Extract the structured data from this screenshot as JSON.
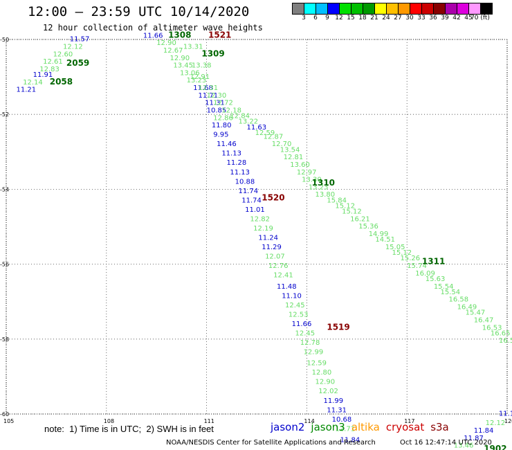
{
  "header": {
    "title": "12:00 – 23:59 UTC 10/14/2020",
    "subtitle": "12 hour collection of altimeter wave heights"
  },
  "legend": {
    "colors": [
      "#7f7f7f",
      "#00ffff",
      "#00bfff",
      "#0000ff",
      "#00e000",
      "#00c000",
      "#009900",
      "#ffff00",
      "#ffc000",
      "#ff9900",
      "#ff0000",
      "#cc0000",
      "#880000",
      "#aa00aa",
      "#dd00dd",
      "#ff99ff",
      "#000000"
    ],
    "labels": [
      "3",
      "6",
      "9",
      "12",
      "15",
      "18",
      "21",
      "24",
      "27",
      "30",
      "33",
      "36",
      "39",
      "42",
      "45",
      "70 (ft)"
    ]
  },
  "axes": {
    "x_ticks": [
      "105",
      "108",
      "111",
      "114",
      "117",
      "120"
    ],
    "y_ticks": [
      "-50",
      "-52",
      "-54",
      "-56",
      "-58",
      "-60"
    ]
  },
  "satellites": [
    {
      "name": "jason2",
      "color": "#0000cc"
    },
    {
      "name": "jason3",
      "color": "#008800"
    },
    {
      "name": "altika",
      "color": "#ff9900"
    },
    {
      "name": "cryosat",
      "color": "#cc0000"
    },
    {
      "name": "s3a",
      "color": "#880000"
    }
  ],
  "footer": {
    "note": "note:  1) Time is in UTC;  2) SWH is in feet",
    "credit": "NOAA/NESDIS Center for Satellite Applications and Research",
    "timestamp": "Oct 16 12:47:14 UTC 2020"
  },
  "time_labels": [
    {
      "text": "1521",
      "lon": 111.05,
      "lat": -49.95,
      "color": "#880000"
    },
    {
      "text": "1308",
      "lon": 109.85,
      "lat": -49.95,
      "color": "#006600"
    },
    {
      "text": "1309",
      "lon": 110.85,
      "lat": -50.45,
      "color": "#006600"
    },
    {
      "text": "2059",
      "lon": 106.8,
      "lat": -50.7,
      "color": "#006600"
    },
    {
      "text": "2058",
      "lon": 106.3,
      "lat": -51.2,
      "color": "#006600"
    },
    {
      "text": "1310",
      "lon": 114.15,
      "lat": -53.9,
      "color": "#006600"
    },
    {
      "text": "1520",
      "lon": 112.65,
      "lat": -54.3,
      "color": "#880000"
    },
    {
      "text": "1311",
      "lon": 117.45,
      "lat": -56.0,
      "color": "#006600"
    },
    {
      "text": "1519",
      "lon": 114.6,
      "lat": -57.75,
      "color": "#880000"
    },
    {
      "text": "1902",
      "lon": 119.3,
      "lat": -61.0,
      "color": "#006600"
    }
  ],
  "observations": [
    {
      "text": "11.57",
      "lon": 106.9,
      "lat": -50.05,
      "color": "#0000cc"
    },
    {
      "text": "12.12",
      "lon": 106.7,
      "lat": -50.25,
      "color": "#66dd66"
    },
    {
      "text": "12.60",
      "lon": 106.4,
      "lat": -50.45,
      "color": "#66dd66"
    },
    {
      "text": "12.61",
      "lon": 106.1,
      "lat": -50.65,
      "color": "#66dd66"
    },
    {
      "text": "12.83",
      "lon": 106.0,
      "lat": -50.85,
      "color": "#66dd66"
    },
    {
      "text": "11.91",
      "lon": 105.8,
      "lat": -51.0,
      "color": "#0000cc"
    },
    {
      "text": "12.14",
      "lon": 105.5,
      "lat": -51.2,
      "color": "#66dd66"
    },
    {
      "text": "11.21",
      "lon": 105.3,
      "lat": -51.4,
      "color": "#0000cc"
    },
    {
      "text": "11.66",
      "lon": 109.1,
      "lat": -49.95,
      "color": "#0000cc"
    },
    {
      "text": "12.90",
      "lon": 109.5,
      "lat": -50.15,
      "color": "#66dd66"
    },
    {
      "text": "12.67",
      "lon": 109.7,
      "lat": -50.35,
      "color": "#66dd66"
    },
    {
      "text": "12.90",
      "lon": 109.9,
      "lat": -50.55,
      "color": "#66dd66"
    },
    {
      "text": "13.31",
      "lon": 110.3,
      "lat": -50.25,
      "color": "#66dd66"
    },
    {
      "text": "13.45",
      "lon": 110.0,
      "lat": -50.75,
      "color": "#66dd66"
    },
    {
      "text": "13.38",
      "lon": 110.55,
      "lat": -50.75,
      "color": "#66dd66"
    },
    {
      "text": "13.06",
      "lon": 110.2,
      "lat": -50.95,
      "color": "#66dd66"
    },
    {
      "text": "12.91",
      "lon": 110.5,
      "lat": -51.05,
      "color": "#66dd66"
    },
    {
      "text": "13.23",
      "lon": 110.4,
      "lat": -51.15,
      "color": "#66dd66"
    },
    {
      "text": "11.68",
      "lon": 110.6,
      "lat": -51.35,
      "color": "#0000cc"
    },
    {
      "text": "12.31",
      "lon": 110.75,
      "lat": -51.35,
      "color": "#66dd66"
    },
    {
      "text": "11.71",
      "lon": 110.75,
      "lat": -51.55,
      "color": "#0000cc"
    },
    {
      "text": "12.30",
      "lon": 111.0,
      "lat": -51.55,
      "color": "#66dd66"
    },
    {
      "text": "11.31",
      "lon": 110.95,
      "lat": -51.75,
      "color": "#0000cc"
    },
    {
      "text": "12.72",
      "lon": 111.2,
      "lat": -51.75,
      "color": "#66dd66"
    },
    {
      "text": "10.85",
      "lon": 111.0,
      "lat": -51.95,
      "color": "#0000cc"
    },
    {
      "text": "12.18",
      "lon": 111.45,
      "lat": -51.95,
      "color": "#66dd66"
    },
    {
      "text": "12.86",
      "lon": 111.2,
      "lat": -52.15,
      "color": "#66dd66"
    },
    {
      "text": "12.84",
      "lon": 111.7,
      "lat": -52.1,
      "color": "#66dd66"
    },
    {
      "text": "13.22",
      "lon": 111.95,
      "lat": -52.25,
      "color": "#66dd66"
    },
    {
      "text": "11.80",
      "lon": 111.15,
      "lat": -52.35,
      "color": "#0000cc"
    },
    {
      "text": "11.63",
      "lon": 112.2,
      "lat": -52.4,
      "color": "#0000cc"
    },
    {
      "text": "12.59",
      "lon": 112.45,
      "lat": -52.55,
      "color": "#66dd66"
    },
    {
      "text": "9.95",
      "lon": 111.2,
      "lat": -52.6,
      "color": "#0000cc"
    },
    {
      "text": "12.87",
      "lon": 112.7,
      "lat": -52.65,
      "color": "#66dd66"
    },
    {
      "text": "11.46",
      "lon": 111.3,
      "lat": -52.85,
      "color": "#0000cc"
    },
    {
      "text": "12.70",
      "lon": 112.95,
      "lat": -52.85,
      "color": "#66dd66"
    },
    {
      "text": "13.54",
      "lon": 113.2,
      "lat": -53.0,
      "color": "#66dd66"
    },
    {
      "text": "11.13",
      "lon": 111.45,
      "lat": -53.1,
      "color": "#0000cc"
    },
    {
      "text": "12.81",
      "lon": 113.3,
      "lat": -53.2,
      "color": "#66dd66"
    },
    {
      "text": "11.28",
      "lon": 111.6,
      "lat": -53.35,
      "color": "#0000cc"
    },
    {
      "text": "13.60",
      "lon": 113.5,
      "lat": -53.4,
      "color": "#66dd66"
    },
    {
      "text": "11.13",
      "lon": 111.7,
      "lat": -53.6,
      "color": "#0000cc"
    },
    {
      "text": "12.97",
      "lon": 113.7,
      "lat": -53.6,
      "color": "#66dd66"
    },
    {
      "text": "10.88",
      "lon": 111.85,
      "lat": -53.85,
      "color": "#0000cc"
    },
    {
      "text": "13.30",
      "lon": 113.85,
      "lat": -53.8,
      "color": "#66dd66"
    },
    {
      "text": "13.23",
      "lon": 114.05,
      "lat": -54.0,
      "color": "#66dd66"
    },
    {
      "text": "11.74",
      "lon": 111.95,
      "lat": -54.1,
      "color": "#0000cc"
    },
    {
      "text": "13.80",
      "lon": 114.25,
      "lat": -54.2,
      "color": "#66dd66"
    },
    {
      "text": "11.74",
      "lon": 112.05,
      "lat": -54.35,
      "color": "#0000cc"
    },
    {
      "text": "15.84",
      "lon": 114.6,
      "lat": -54.35,
      "color": "#66dd66"
    },
    {
      "text": "15.12",
      "lon": 114.85,
      "lat": -54.5,
      "color": "#66dd66"
    },
    {
      "text": "11.01",
      "lon": 112.15,
      "lat": -54.6,
      "color": "#0000cc"
    },
    {
      "text": "15.12",
      "lon": 115.05,
      "lat": -54.65,
      "color": "#66dd66"
    },
    {
      "text": "12.82",
      "lon": 112.3,
      "lat": -54.85,
      "color": "#66dd66"
    },
    {
      "text": "16.21",
      "lon": 115.3,
      "lat": -54.85,
      "color": "#66dd66"
    },
    {
      "text": "15.36",
      "lon": 115.55,
      "lat": -55.05,
      "color": "#66dd66"
    },
    {
      "text": "12.19",
      "lon": 112.4,
      "lat": -55.1,
      "color": "#66dd66"
    },
    {
      "text": "14.99",
      "lon": 115.85,
      "lat": -55.25,
      "color": "#66dd66"
    },
    {
      "text": "14.51",
      "lon": 116.05,
      "lat": -55.4,
      "color": "#66dd66"
    },
    {
      "text": "11.24",
      "lon": 112.55,
      "lat": -55.35,
      "color": "#0000cc"
    },
    {
      "text": "15.05",
      "lon": 116.35,
      "lat": -55.6,
      "color": "#66dd66"
    },
    {
      "text": "11.29",
      "lon": 112.65,
      "lat": -55.6,
      "color": "#0000cc"
    },
    {
      "text": "15.12",
      "lon": 116.55,
      "lat": -55.75,
      "color": "#66dd66"
    },
    {
      "text": "12.07",
      "lon": 112.75,
      "lat": -55.85,
      "color": "#66dd66"
    },
    {
      "text": "15.26",
      "lon": 116.8,
      "lat": -55.9,
      "color": "#66dd66"
    },
    {
      "text": "15.74",
      "lon": 117.0,
      "lat": -56.1,
      "color": "#66dd66"
    },
    {
      "text": "12.76",
      "lon": 112.85,
      "lat": -56.1,
      "color": "#66dd66"
    },
    {
      "text": "16.09",
      "lon": 117.25,
      "lat": -56.3,
      "color": "#66dd66"
    },
    {
      "text": "12.41",
      "lon": 113.0,
      "lat": -56.35,
      "color": "#66dd66"
    },
    {
      "text": "15.63",
      "lon": 117.55,
      "lat": -56.45,
      "color": "#66dd66"
    },
    {
      "text": "15.54",
      "lon": 117.8,
      "lat": -56.65,
      "color": "#66dd66"
    },
    {
      "text": "11.48",
      "lon": 113.1,
      "lat": -56.65,
      "color": "#0000cc"
    },
    {
      "text": "15.54",
      "lon": 118.0,
      "lat": -56.8,
      "color": "#66dd66"
    },
    {
      "text": "11.10",
      "lon": 113.25,
      "lat": -56.9,
      "color": "#0000cc"
    },
    {
      "text": "16.58",
      "lon": 118.25,
      "lat": -57.0,
      "color": "#66dd66"
    },
    {
      "text": "12.45",
      "lon": 113.35,
      "lat": -57.15,
      "color": "#66dd66"
    },
    {
      "text": "16.49",
      "lon": 118.5,
      "lat": -57.2,
      "color": "#66dd66"
    },
    {
      "text": "12.53",
      "lon": 113.45,
      "lat": -57.4,
      "color": "#66dd66"
    },
    {
      "text": "15.47",
      "lon": 118.75,
      "lat": -57.35,
      "color": "#66dd66"
    },
    {
      "text": "16.47",
      "lon": 119.0,
      "lat": -57.55,
      "color": "#66dd66"
    },
    {
      "text": "11.66",
      "lon": 113.55,
      "lat": -57.65,
      "color": "#0000cc"
    },
    {
      "text": "16.53",
      "lon": 119.25,
      "lat": -57.75,
      "color": "#66dd66"
    },
    {
      "text": "12.45",
      "lon": 113.65,
      "lat": -57.9,
      "color": "#66dd66"
    },
    {
      "text": "16.65",
      "lon": 119.5,
      "lat": -57.9,
      "color": "#66dd66"
    },
    {
      "text": "16.5",
      "lon": 119.75,
      "lat": -58.1,
      "color": "#66dd66"
    },
    {
      "text": "12.78",
      "lon": 113.8,
      "lat": -58.15,
      "color": "#66dd66"
    },
    {
      "text": "12.99",
      "lon": 113.9,
      "lat": -58.4,
      "color": "#66dd66"
    },
    {
      "text": "12.59",
      "lon": 114.0,
      "lat": -58.7,
      "color": "#66dd66"
    },
    {
      "text": "12.80",
      "lon": 114.15,
      "lat": -58.95,
      "color": "#66dd66"
    },
    {
      "text": "12.90",
      "lon": 114.25,
      "lat": -59.2,
      "color": "#66dd66"
    },
    {
      "text": "12.02",
      "lon": 114.35,
      "lat": -59.45,
      "color": "#66dd66"
    },
    {
      "text": "11.99",
      "lon": 114.5,
      "lat": -59.7,
      "color": "#0000cc"
    },
    {
      "text": "11.31",
      "lon": 114.6,
      "lat": -59.95,
      "color": "#0000cc"
    },
    {
      "text": "10.68",
      "lon": 114.75,
      "lat": -60.2,
      "color": "#0000cc"
    },
    {
      "text": "12.71",
      "lon": 114.85,
      "lat": -60.45,
      "color": "#66dd66"
    },
    {
      "text": "11.84",
      "lon": 115.0,
      "lat": -60.75,
      "color": "#0000cc"
    },
    {
      "text": "11.12",
      "lon": 119.75,
      "lat": -60.05,
      "color": "#0000cc"
    },
    {
      "text": "12.12",
      "lon": 119.35,
      "lat": -60.3,
      "color": "#66dd66"
    },
    {
      "text": "11.84",
      "lon": 119.0,
      "lat": -60.5,
      "color": "#0000cc"
    },
    {
      "text": "11.87",
      "lon": 118.7,
      "lat": -60.7,
      "color": "#0000cc"
    },
    {
      "text": "13.46",
      "lon": 118.4,
      "lat": -60.9,
      "color": "#66dd66"
    }
  ]
}
